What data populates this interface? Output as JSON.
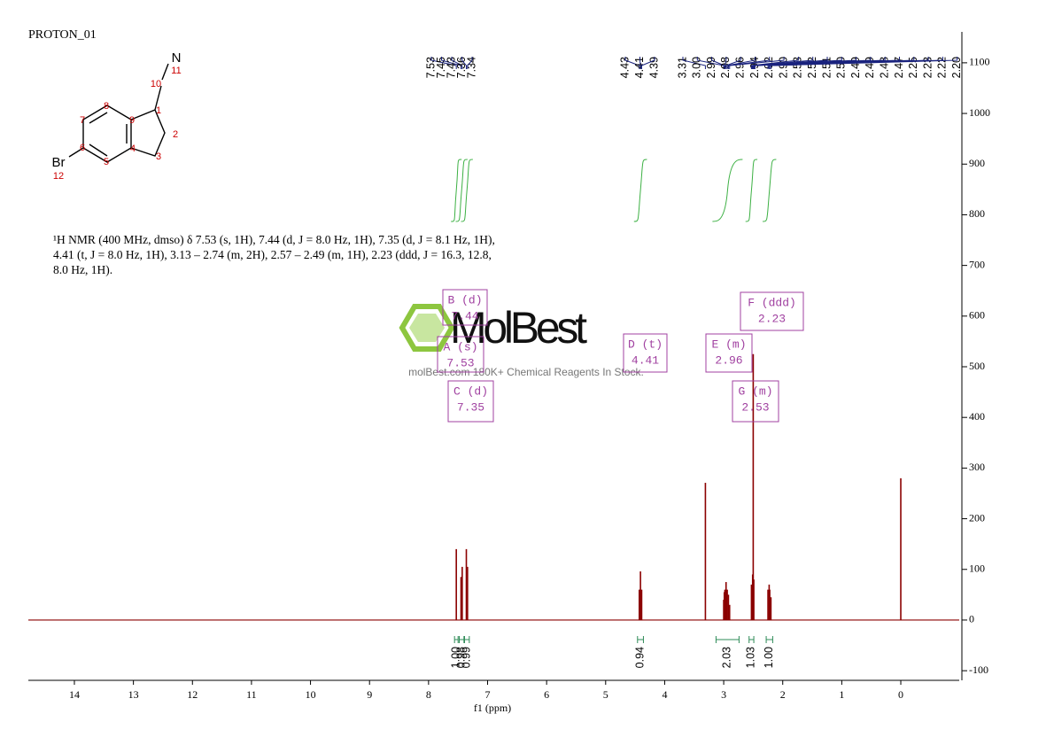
{
  "chart_data": {
    "type": "nmr",
    "title": "PROTON_01",
    "description": [
      "¹H NMR (400 MHz, dmso) δ 7.53 (s, 1H), 7.44 (d, J = 8.0 Hz, 1H), 7.35 (d, J = 8.1 Hz, 1H),",
      "4.41 (t, J = 8.0 Hz, 1H), 3.13 – 2.74 (m, 2H), 2.57 – 2.49 (m, 1H), 2.23 (ddd, J = 16.3, 12.8,",
      "8.0 Hz, 1H)."
    ],
    "structure_labels": [
      "N",
      "11",
      "10",
      "1",
      "2",
      "3",
      "4",
      "9",
      "8",
      "7",
      "6",
      "5",
      "Br",
      "12"
    ],
    "watermark": {
      "name": "MolBest",
      "tagline": "molBest.com 180K+ Chemical Reagents In Stock."
    },
    "x_label": "f1 (ppm)",
    "xlim": [
      14.78,
      -0.99
    ],
    "xticks": [
      14,
      13,
      12,
      11,
      10,
      9,
      8,
      7,
      6,
      5,
      4,
      3,
      2,
      1,
      0
    ],
    "ylim": [
      -119,
      1161
    ],
    "yticks": [
      -100,
      0,
      100,
      200,
      300,
      400,
      500,
      600,
      700,
      800,
      900,
      1000,
      1100
    ],
    "x": [
      7.53,
      7.45,
      7.43,
      7.36,
      7.34,
      4.43,
      4.41,
      4.39,
      3.31,
      3.0,
      2.99,
      2.98,
      2.96,
      2.94,
      2.92,
      2.9,
      2.53,
      2.51,
      2.5,
      2.49,
      2.25,
      2.23,
      2.22,
      2.2,
      0
    ],
    "values": [
      140,
      85,
      105,
      140,
      105,
      60,
      96,
      60,
      271,
      40,
      55,
      60,
      75,
      60,
      50,
      30,
      70,
      90,
      525,
      80,
      60,
      70,
      60,
      45,
      280
    ],
    "color": "#8b0000",
    "peak_labels": [
      [
        7.53,
        7.45,
        7.43,
        7.36,
        7.34
      ],
      [
        4.43,
        4.41,
        4.39
      ],
      [
        3.31,
        {
          "value": 3,
          "label": "3.00"
        },
        2.99,
        2.98,
        2.96,
        2.94,
        2.92,
        {
          "value": 2.9,
          "label": "2.90"
        },
        2.53,
        2.52,
        2.51,
        {
          "value": 2.5,
          "label": "2.50"
        },
        2.49,
        2.49,
        2.48,
        2.47,
        2.25,
        2.23,
        2.22,
        {
          "value": 2.2,
          "label": "2.20"
        }
      ]
    ],
    "multiplets": [
      {
        "label": "A (s)",
        "shift": 7.53
      },
      {
        "label": "B (d)",
        "shift": 7.44
      },
      {
        "label": "C (d)",
        "shift": 7.35
      },
      {
        "label": "D (t)",
        "shift": 4.41
      },
      {
        "label": "E (m)",
        "shift": 2.96
      },
      {
        "label": "F (ddd)",
        "shift": 2.23
      },
      {
        "label": "G (m)",
        "shift": 2.53
      }
    ],
    "integrals": {
      "ranges": [
        [
          7.56,
          7.5
        ],
        [
          7.48,
          7.4
        ],
        [
          7.39,
          7.31
        ],
        [
          4.46,
          4.36
        ],
        [
          3.13,
          2.74
        ],
        [
          2.57,
          2.49
        ],
        [
          2.28,
          2.17
        ]
      ],
      "values": [
        1,
        0.98,
        0.99,
        0.94,
        2.03,
        1.03,
        1
      ],
      "value_labels": [
        "1.00",
        "0.98",
        "0.99",
        "0.94",
        "2.03",
        "1.03",
        "1.00"
      ]
    }
  }
}
